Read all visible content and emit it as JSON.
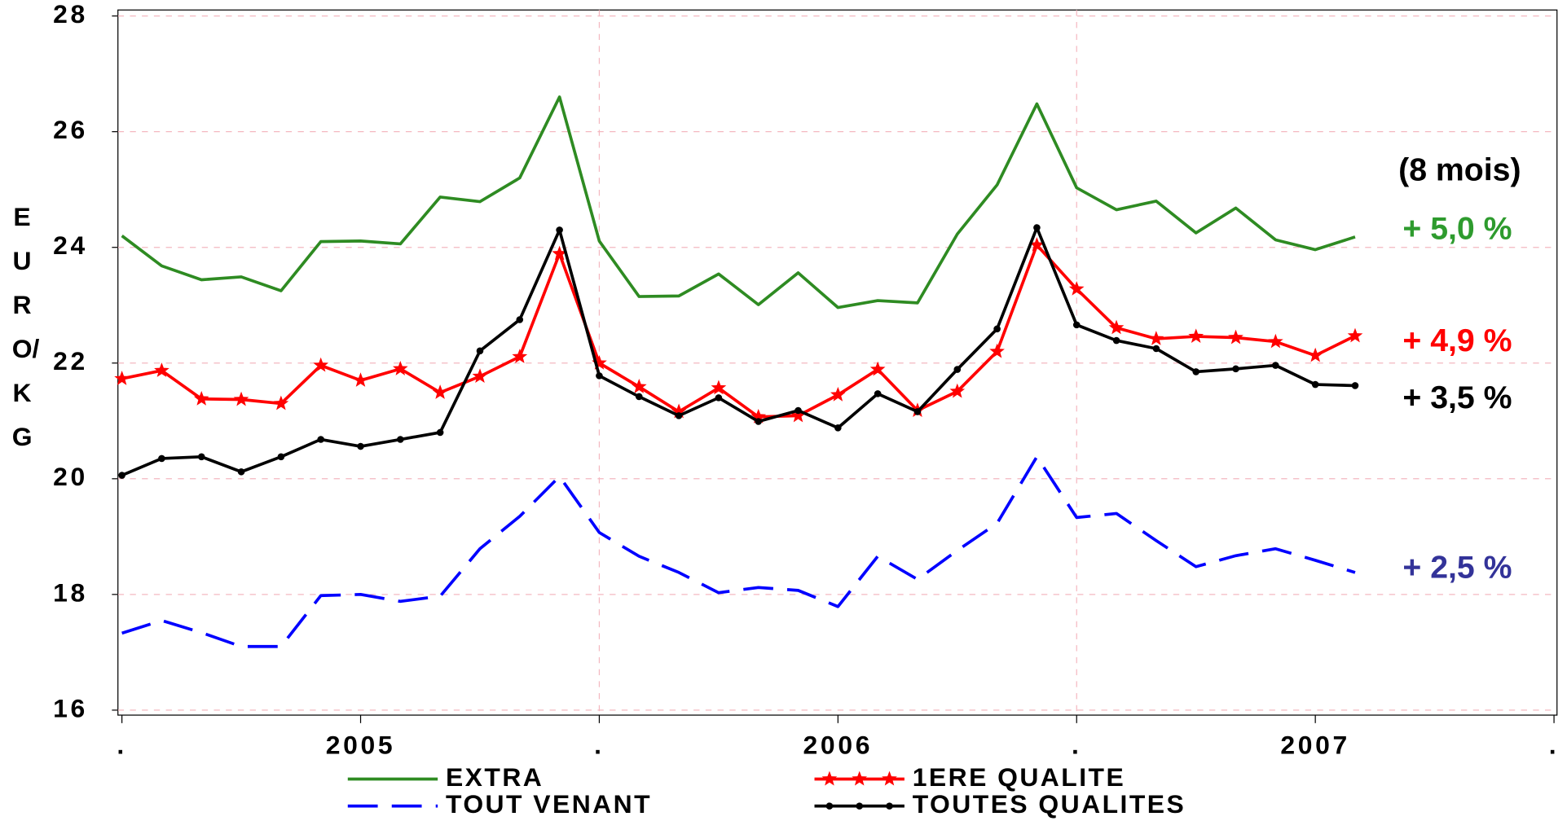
{
  "chart_data": {
    "type": "line",
    "ylabel": "EURO/KG",
    "x": [
      0,
      1,
      2,
      3,
      4,
      5,
      6,
      7,
      8,
      9,
      10,
      11,
      12,
      13,
      14,
      15,
      16,
      17,
      18,
      19,
      20,
      21,
      22,
      23,
      24,
      25,
      26,
      27,
      28,
      29,
      30,
      31
    ],
    "xlim": [
      0,
      36
    ],
    "xticks": [
      {
        "value": 0,
        "label": "."
      },
      {
        "value": 6,
        "label": "2005"
      },
      {
        "value": 12,
        "label": "."
      },
      {
        "value": 18,
        "label": "2006"
      },
      {
        "value": 24,
        "label": "."
      },
      {
        "value": 30,
        "label": "2007"
      },
      {
        "value": 36,
        "label": "."
      }
    ],
    "ylim": [
      16,
      28
    ],
    "yticks": [
      16,
      18,
      20,
      22,
      24,
      26,
      28
    ],
    "grid": true,
    "series": [
      {
        "name": "EXTRA",
        "color": "#2e8b22",
        "style": "solid",
        "marker": "none",
        "values": [
          24.2,
          23.68,
          23.44,
          23.49,
          23.25,
          24.1,
          24.11,
          24.06,
          24.87,
          24.79,
          25.2,
          26.6,
          24.11,
          23.15,
          23.16,
          23.54,
          23.01,
          23.56,
          22.96,
          23.08,
          23.04,
          24.23,
          25.08,
          26.48,
          25.03,
          24.65,
          24.8,
          24.25,
          24.68,
          24.13,
          23.96,
          24.18
        ]
      },
      {
        "name": "1ERE QUALITE",
        "color": "#ff0000",
        "style": "solid",
        "marker": "star",
        "values": [
          21.73,
          21.87,
          21.38,
          21.37,
          21.3,
          21.96,
          21.7,
          21.9,
          21.49,
          21.77,
          22.11,
          23.89,
          22.0,
          21.59,
          21.16,
          21.57,
          21.07,
          21.09,
          21.45,
          21.89,
          21.18,
          21.51,
          22.2,
          24.04,
          23.28,
          22.61,
          22.42,
          22.46,
          22.44,
          22.37,
          22.13,
          22.47
        ]
      },
      {
        "name": "TOUT VENANT",
        "color": "#0000ff",
        "style": "dashed",
        "marker": "none",
        "values": [
          17.33,
          17.55,
          17.34,
          17.1,
          17.1,
          17.98,
          18.0,
          17.88,
          17.97,
          18.79,
          19.35,
          20.04,
          19.07,
          18.66,
          18.38,
          18.03,
          18.12,
          18.07,
          17.79,
          18.66,
          18.26,
          18.76,
          19.23,
          20.38,
          19.33,
          19.4,
          18.93,
          18.48,
          18.67,
          18.79,
          18.59,
          18.38
        ]
      },
      {
        "name": "TOUTES QUALITES",
        "color": "#000000",
        "style": "solid",
        "marker": "dot",
        "values": [
          20.06,
          20.35,
          20.38,
          20.12,
          20.38,
          20.68,
          20.56,
          20.68,
          20.8,
          22.21,
          22.75,
          24.3,
          21.78,
          21.42,
          21.09,
          21.4,
          20.99,
          21.18,
          20.88,
          21.47,
          21.16,
          21.89,
          22.59,
          24.34,
          22.66,
          22.39,
          22.25,
          21.85,
          21.9,
          21.96,
          21.63,
          21.61
        ]
      }
    ],
    "annotations": [
      {
        "text": "(8 mois)",
        "color": "#000000"
      },
      {
        "text": "+ 5,0 %",
        "color": "#2e9b2e"
      },
      {
        "text": "+ 4,9 %",
        "color": "#ff0000"
      },
      {
        "text": "+ 3,5 %",
        "color": "#000000"
      },
      {
        "text": "+ 2,5 %",
        "color": "#333399"
      }
    ]
  }
}
